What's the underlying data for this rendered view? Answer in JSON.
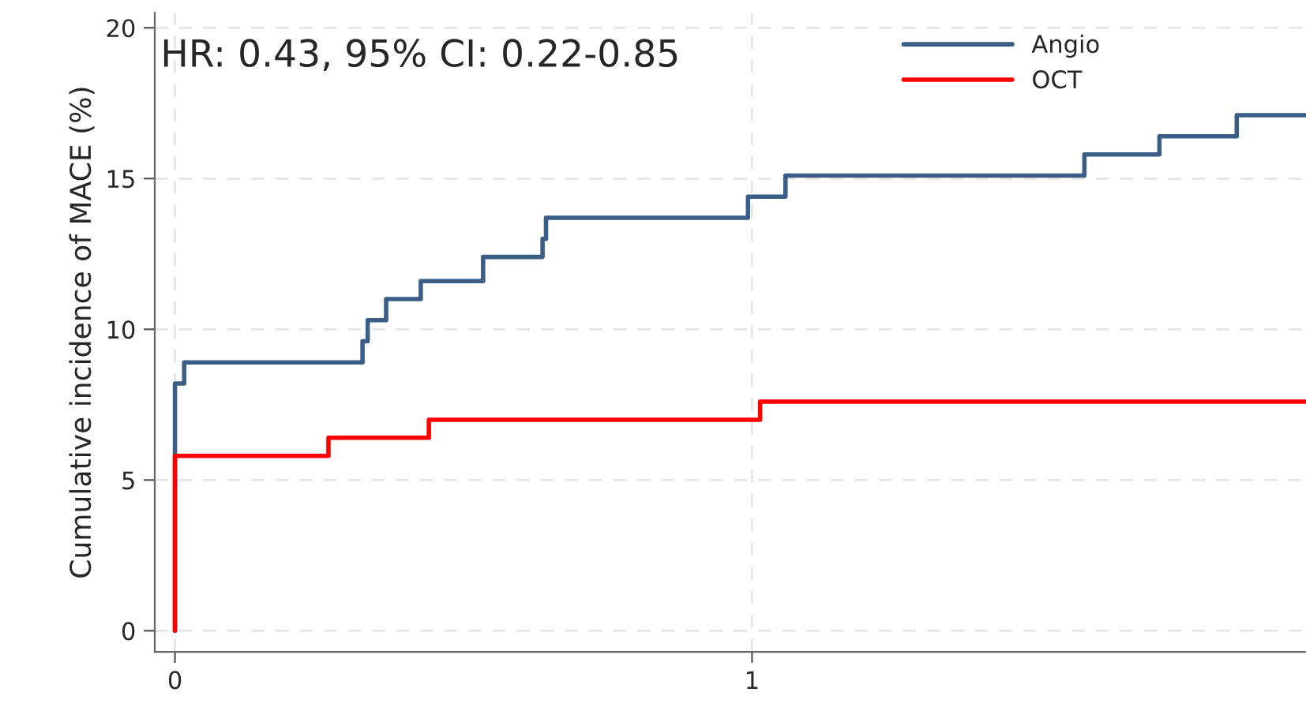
{
  "chart_data": {
    "type": "step",
    "ylabel": "Cumulative incidence of MACE (%)",
    "annotations": [
      "HR: 0.43, 95% CI: 0.22-0.85"
    ],
    "series": [
      {
        "name": "Angio",
        "color": "#3b5e86",
        "x": [
          0,
          0,
          0.016,
          0.325,
          0.334,
          0.366,
          0.426,
          0.534,
          0.637,
          0.643,
          0.993,
          1.058,
          1.576,
          1.706,
          1.84,
          1.96
        ],
        "values": [
          0,
          8.2,
          8.9,
          9.6,
          10.3,
          11.0,
          11.6,
          12.4,
          13.0,
          13.7,
          14.4,
          15.1,
          15.8,
          16.4,
          17.1,
          17.1
        ]
      },
      {
        "name": "OCT",
        "color": "#ff0000",
        "x": [
          0,
          0,
          0.266,
          0.44,
          1.014,
          1.96
        ],
        "values": [
          0,
          5.8,
          6.4,
          7.0,
          7.6,
          7.6
        ]
      }
    ],
    "xlim": [
      -0.035,
      1.96
    ],
    "ylim": [
      -0.7,
      20.5
    ],
    "xticks": [
      0,
      1
    ],
    "yticks": [
      0,
      5,
      10,
      15,
      20
    ],
    "grid": true,
    "legend": "top right",
    "line_style": "solid"
  }
}
